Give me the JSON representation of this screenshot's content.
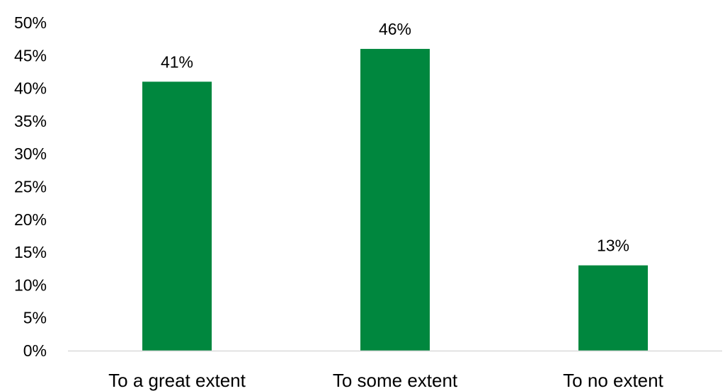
{
  "chart_data": {
    "type": "bar",
    "categories": [
      "To a great extent",
      "To some extent",
      "To no extent"
    ],
    "values": [
      41,
      46,
      13
    ],
    "data_labels": [
      "41%",
      "46%",
      "13%"
    ],
    "y_ticks": [
      "0%",
      "5%",
      "10%",
      "15%",
      "20%",
      "25%",
      "30%",
      "35%",
      "40%",
      "45%",
      "50%"
    ],
    "ylim": [
      0,
      50
    ],
    "grid": false,
    "legend": "none",
    "bar_color": "#00873E",
    "axis_color": "#D9D9D9"
  }
}
